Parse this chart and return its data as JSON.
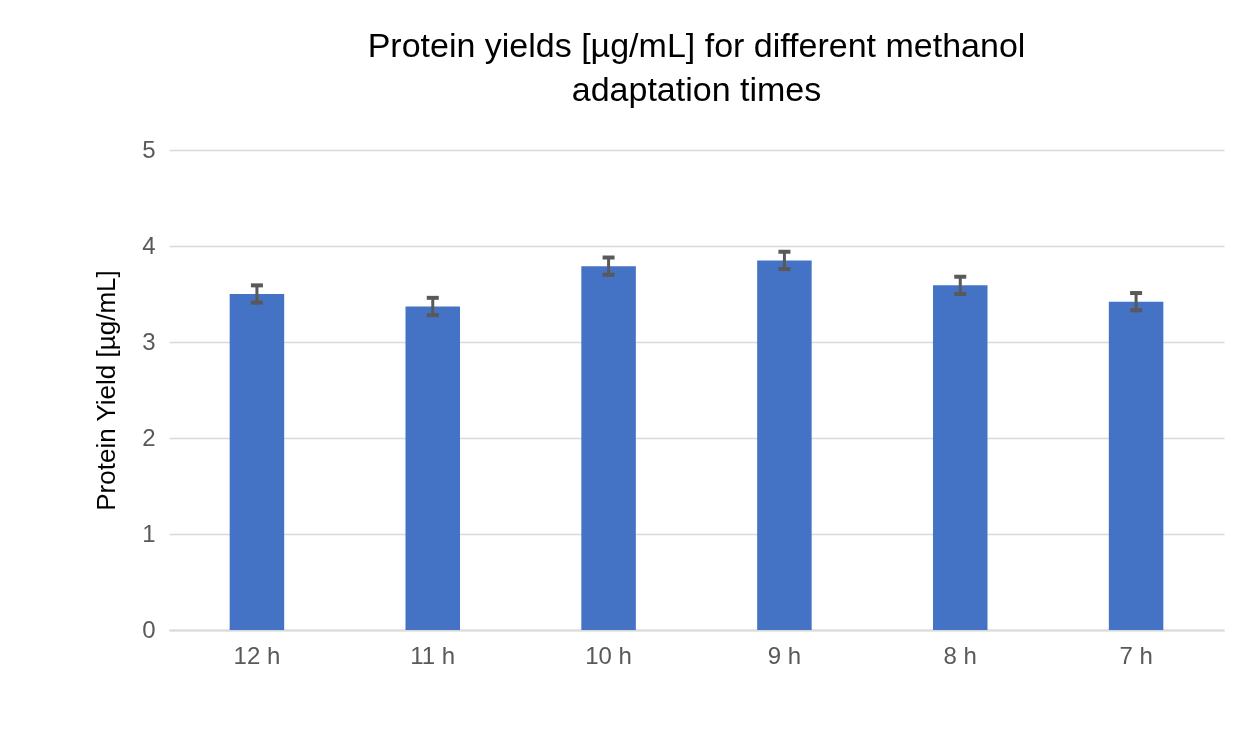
{
  "chart_data": {
    "type": "bar",
    "title": "Protein yields [µg/mL] for different methanol adaptation times",
    "ylabel": "Protein Yield [µg/mL]",
    "categories": [
      "12 h",
      "11 h",
      "10 h",
      "9 h",
      "8 h",
      "7 h"
    ],
    "values": [
      3.5,
      3.37,
      3.79,
      3.85,
      3.59,
      3.42
    ],
    "errors": [
      0.09,
      0.09,
      0.09,
      0.09,
      0.09,
      0.09
    ],
    "color": "#4472c4",
    "ylim": [
      0,
      5
    ],
    "yticks": [
      0,
      1,
      2,
      3,
      4,
      5
    ],
    "grid": "y"
  }
}
